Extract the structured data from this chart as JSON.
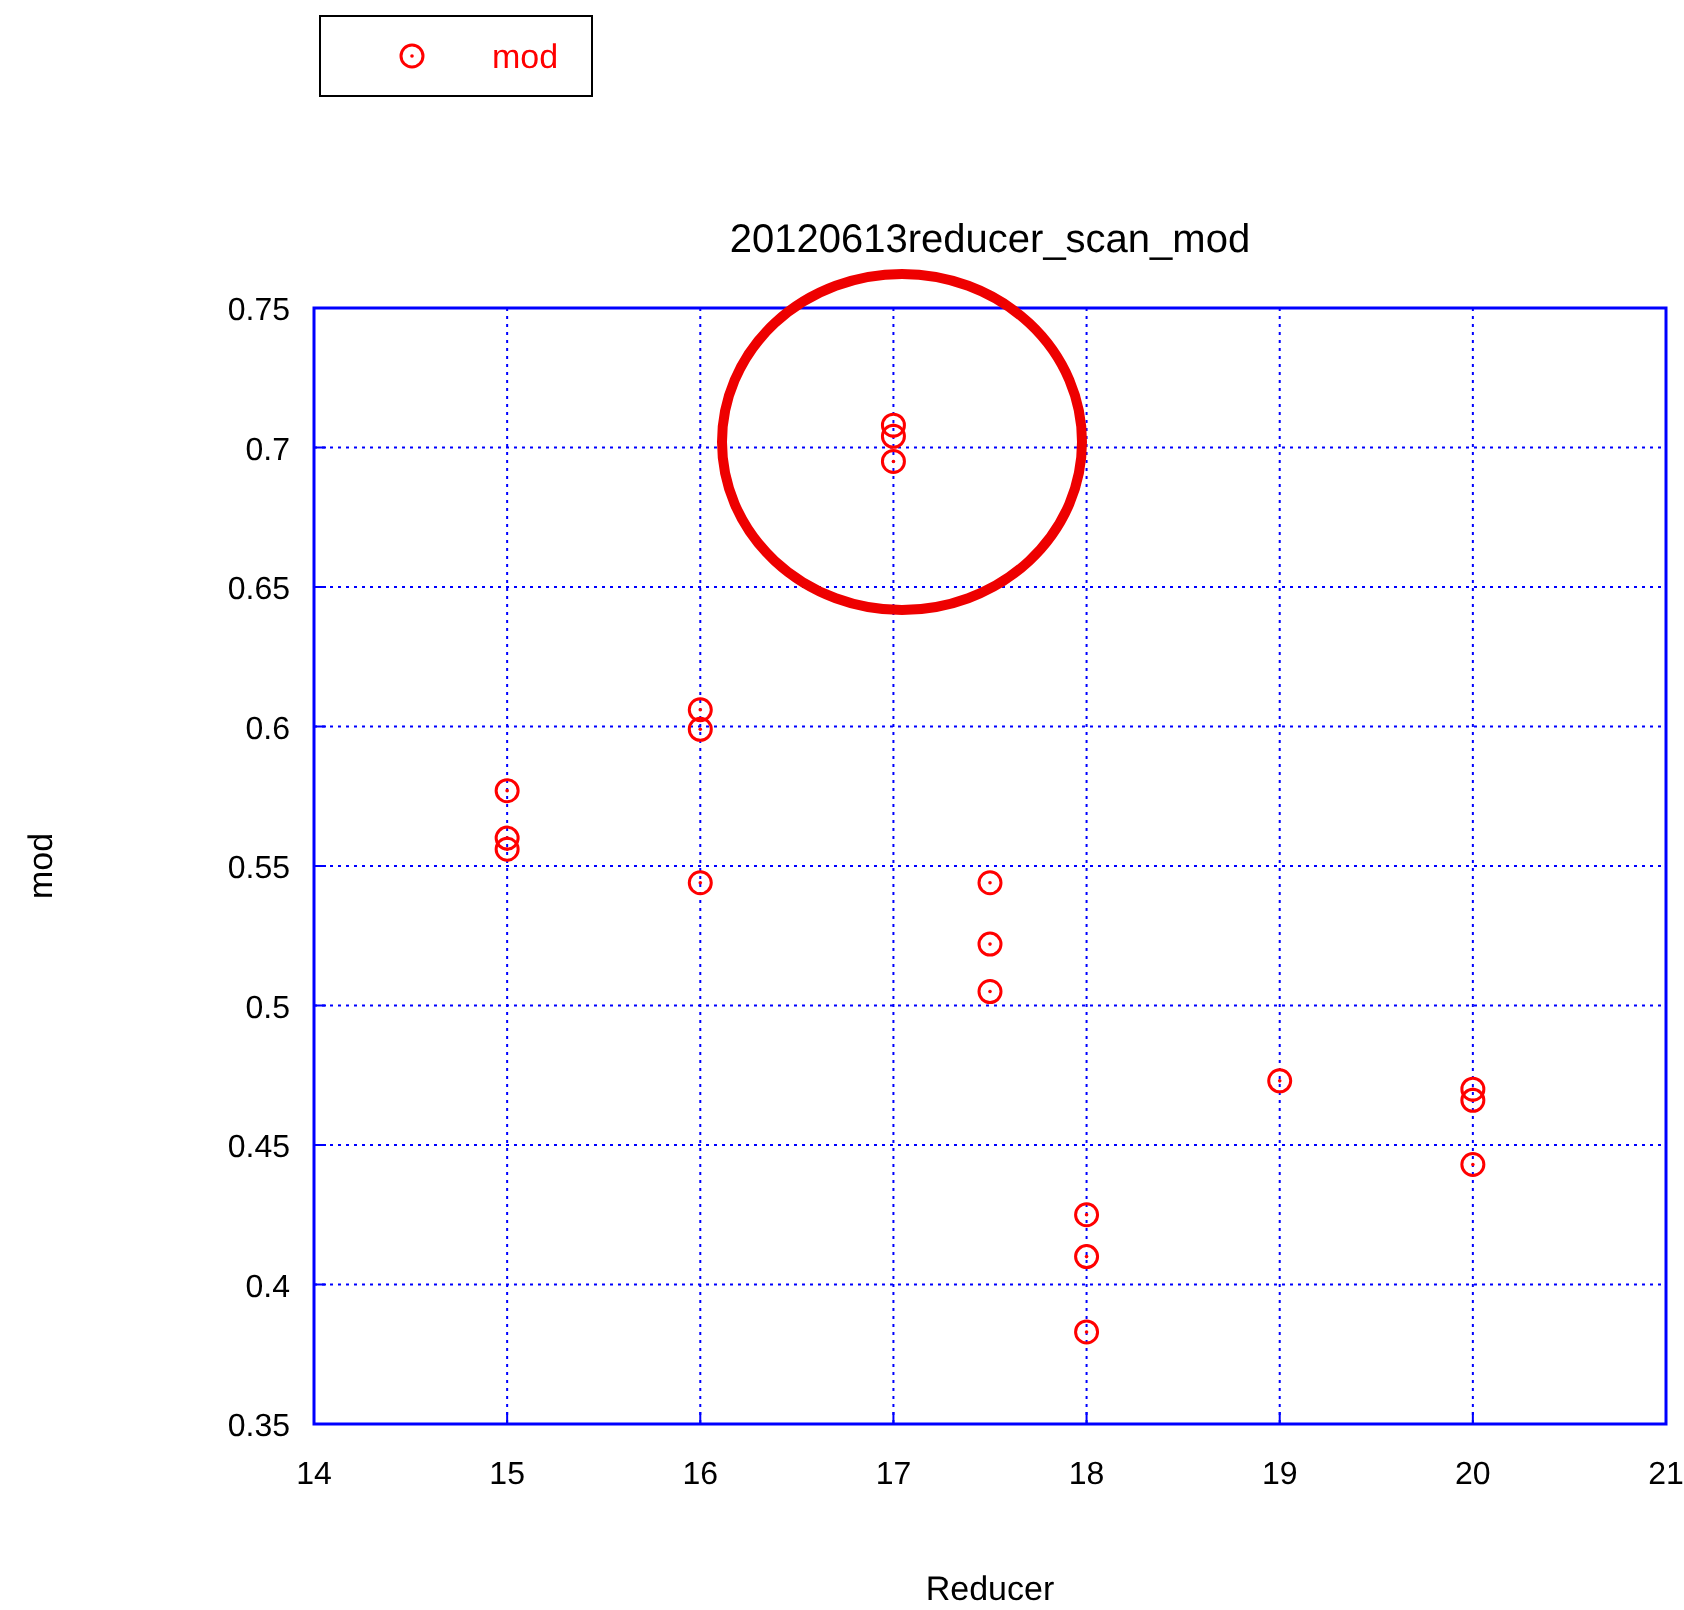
{
  "chart_data": {
    "type": "scatter",
    "title": "20120613reducer_scan_mod",
    "xlabel": "Reducer",
    "ylabel": "mod",
    "x": [
      15,
      15,
      15,
      16,
      16,
      16,
      17,
      17,
      17,
      17.5,
      17.5,
      17.5,
      18,
      18,
      18,
      19,
      20,
      20,
      20
    ],
    "series": [
      {
        "name": "mod",
        "color": "#ff0000",
        "values": [
          0.577,
          0.56,
          0.556,
          0.606,
          0.599,
          0.544,
          0.708,
          0.704,
          0.695,
          0.544,
          0.522,
          0.505,
          0.425,
          0.41,
          0.383,
          0.473,
          0.47,
          0.466,
          0.443
        ]
      }
    ],
    "xlim": [
      14,
      21
    ],
    "xticks": [
      14,
      15,
      16,
      17,
      18,
      19,
      20,
      21
    ],
    "ylim": [
      0.35,
      0.75
    ],
    "yticks": [
      0.35,
      0.4,
      0.45,
      0.5,
      0.55,
      0.6,
      0.65,
      0.7,
      0.75
    ],
    "grid": true,
    "legend": "top left",
    "marker": "circle"
  }
}
